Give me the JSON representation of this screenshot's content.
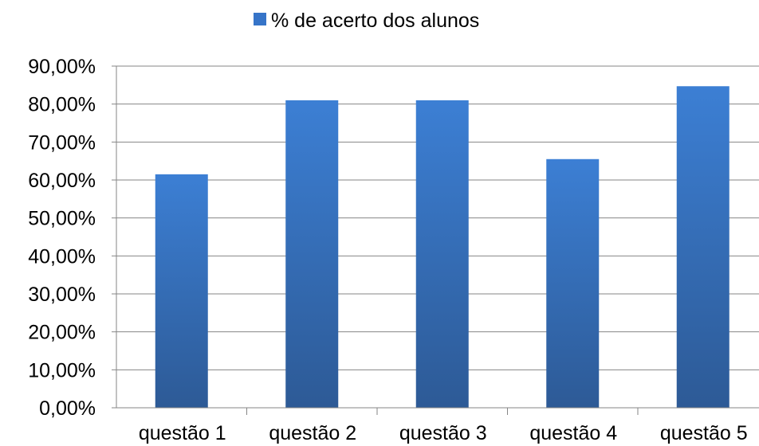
{
  "chart_data": {
    "type": "bar",
    "categories": [
      "questão 1",
      "questão 2",
      "questão 3",
      "questão 4",
      "questão 5"
    ],
    "series": [
      {
        "name": "% de acerto dos alunos",
        "values": [
          61.5,
          81.0,
          81.0,
          65.5,
          84.7
        ]
      }
    ],
    "ylim": [
      0,
      90
    ],
    "ytick_values": [
      0,
      10,
      20,
      30,
      40,
      50,
      60,
      70,
      80,
      90
    ],
    "ytick_labels": [
      "0,00%",
      "10,00%",
      "20,00%",
      "30,00%",
      "40,00%",
      "50,00%",
      "60,00%",
      "70,00%",
      "80,00%",
      "90,00%"
    ],
    "grid": true,
    "legend_position": "top",
    "colors": {
      "bar_top": "#3c7fd4",
      "bar_bottom": "#2d5a96",
      "grid": "#868686",
      "axis": "#868686",
      "text": "#000000"
    }
  }
}
